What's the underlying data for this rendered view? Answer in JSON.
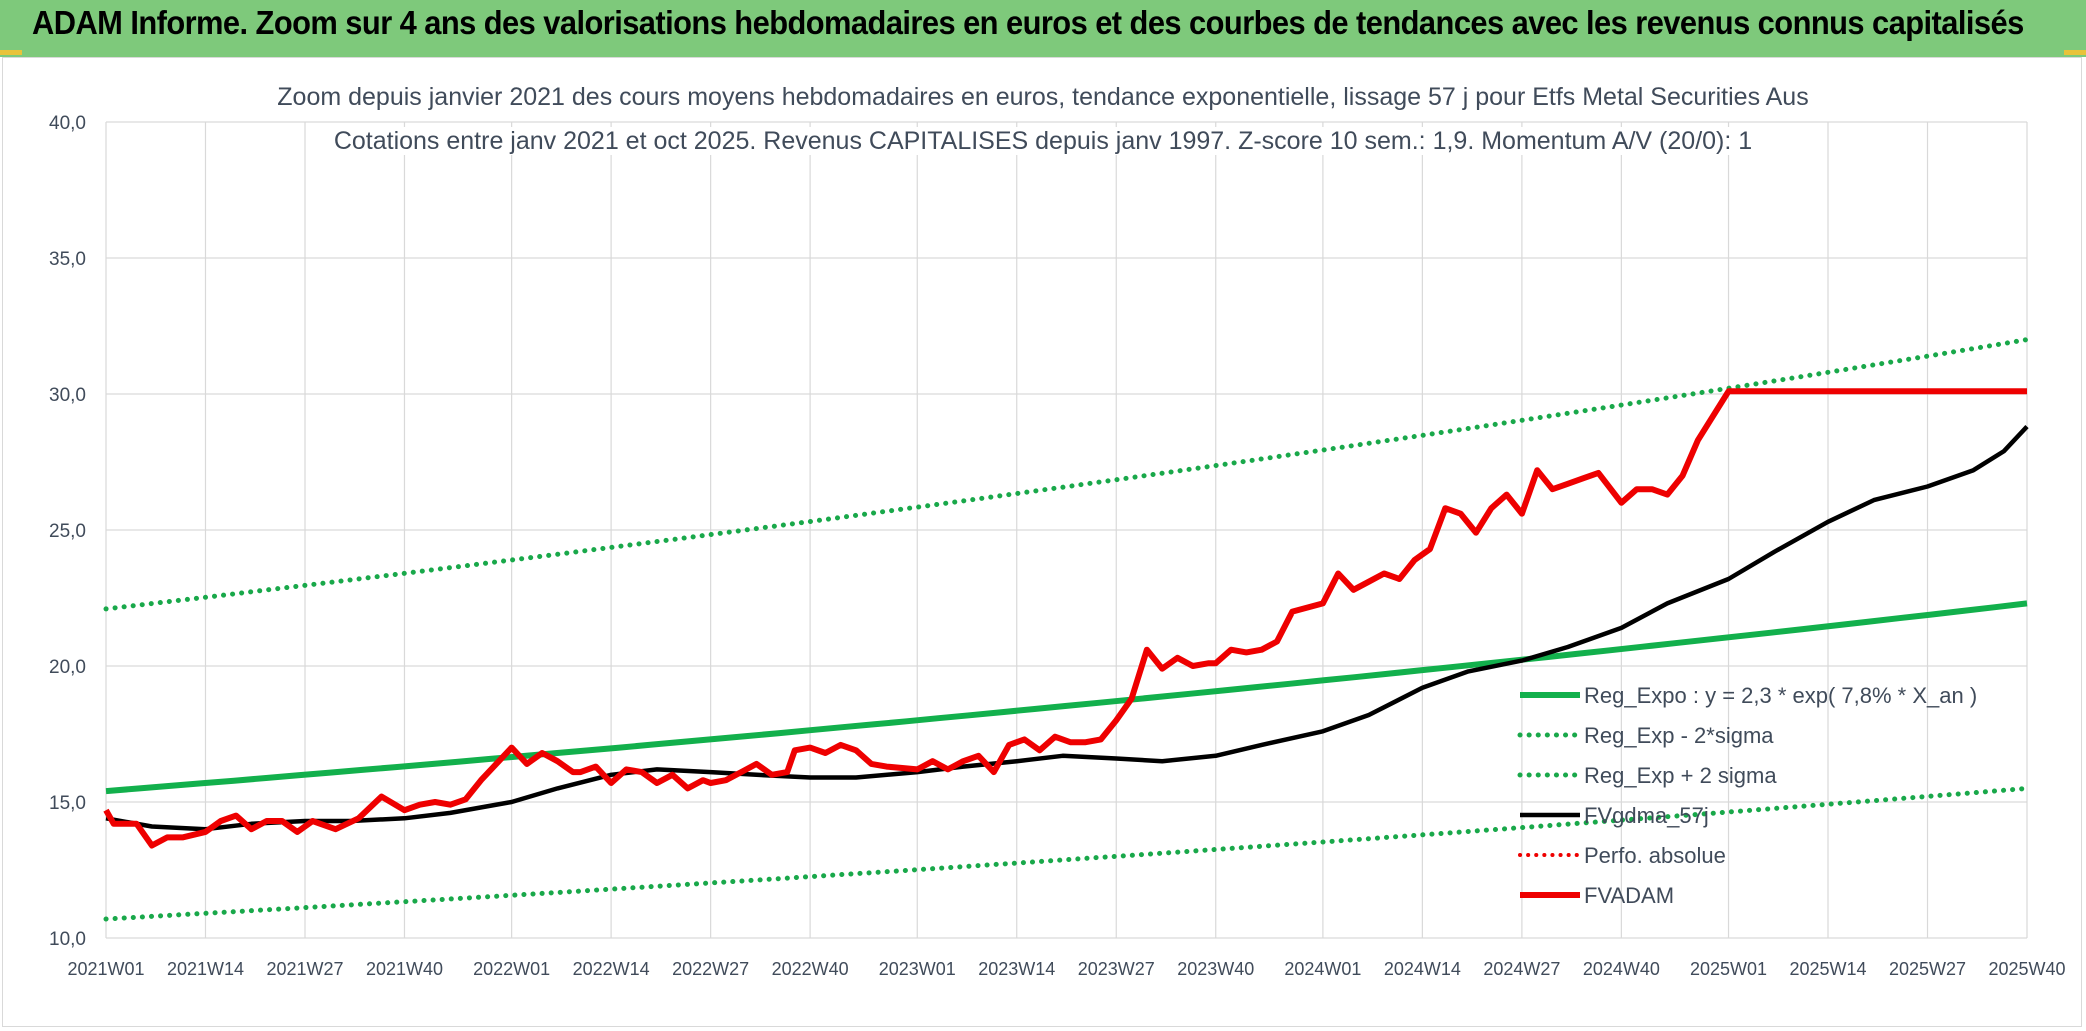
{
  "header": {
    "banner_title": "ADAM Informe. Zoom sur 4 ans des valorisations hebdomadaires en euros et des courbes de tendances avec les revenus connus capitalisés"
  },
  "colors": {
    "banner_bg": "#7ec97b",
    "green_line": "#12b04c",
    "dotted_green": "#19a84a",
    "black_line": "#000000",
    "red_line": "#ee0000"
  },
  "chart_data": {
    "type": "line",
    "title": "Zoom depuis janvier 2021 des cours moyens hebdomadaires en euros, tendance exponentielle, lissage 57 j pour Etfs Metal Securities Aus",
    "subtitle": "Cotations entre janv 2021 et oct 2025. Revenus CAPITALISES depuis janv 1997. Z-score 10 sem.: 1,9. Momentum A/V (20/0): 1",
    "xlabel": "",
    "ylabel": "",
    "ylim": [
      10,
      40
    ],
    "y_ticks": [
      "10,0",
      "15,0",
      "20,0",
      "25,0",
      "30,0",
      "35,0",
      "40,0"
    ],
    "x_tick_labels": [
      "2021W01",
      "2021W14",
      "2021W27",
      "2021W40",
      "2022W01",
      "2022W14",
      "2022W27",
      "2022W40",
      "2023W01",
      "2023W14",
      "2023W27",
      "2023W40",
      "2024W01",
      "2024W14",
      "2024W27",
      "2024W40",
      "2025W01",
      "2025W14",
      "2025W27",
      "2025W40"
    ],
    "grid": true,
    "legend_position": "lower-right",
    "series": [
      {
        "name": "Reg_Expo : y = 2,3 * exp( 7,8% *  X_an )",
        "style": "solid-green",
        "x": [
          "2021W01",
          "2025W40"
        ],
        "values": [
          15.4,
          22.3
        ],
        "curve": "exponential"
      },
      {
        "name": "Reg_Exp - 2*sigma",
        "style": "dotted-green",
        "x": [
          "2021W01",
          "2025W40"
        ],
        "values": [
          10.7,
          15.5
        ],
        "curve": "exponential"
      },
      {
        "name": "Reg_Exp + 2 sigma",
        "style": "dotted-green",
        "x": [
          "2021W01",
          "2025W40"
        ],
        "values": [
          22.1,
          32.0
        ],
        "curve": "exponential"
      },
      {
        "name": "FVgdma_57j",
        "style": "solid-black",
        "x": [
          "2021W01",
          "2021W07",
          "2021W14",
          "2021W20",
          "2021W27",
          "2021W33",
          "2021W40",
          "2021W46",
          "2022W01",
          "2022W07",
          "2022W14",
          "2022W20",
          "2022W27",
          "2022W33",
          "2022W40",
          "2022W46",
          "2023W01",
          "2023W07",
          "2023W14",
          "2023W20",
          "2023W27",
          "2023W33",
          "2023W40",
          "2023W46",
          "2024W01",
          "2024W07",
          "2024W14",
          "2024W20",
          "2024W27",
          "2024W33",
          "2024W40",
          "2024W46",
          "2025W01",
          "2025W07",
          "2025W14",
          "2025W20",
          "2025W27",
          "2025W33",
          "2025W37",
          "2025W40"
        ],
        "values": [
          14.4,
          14.1,
          14.0,
          14.2,
          14.3,
          14.3,
          14.4,
          14.6,
          15.0,
          15.5,
          16.0,
          16.2,
          16.1,
          16.0,
          15.9,
          15.9,
          16.1,
          16.3,
          16.5,
          16.7,
          16.6,
          16.5,
          16.7,
          17.1,
          17.6,
          18.2,
          19.2,
          19.8,
          20.2,
          20.7,
          21.4,
          22.3,
          23.2,
          24.2,
          25.3,
          26.1,
          26.6,
          27.2,
          27.9,
          28.8
        ]
      },
      {
        "name": "Perfo. absolue",
        "style": "dotted-red",
        "x": [],
        "values": []
      },
      {
        "name": "FVADAM",
        "style": "solid-red",
        "x": [
          "2021W01",
          "2021W02",
          "2021W05",
          "2021W07",
          "2021W09",
          "2021W11",
          "2021W14",
          "2021W16",
          "2021W18",
          "2021W20",
          "2021W22",
          "2021W24",
          "2021W26",
          "2021W28",
          "2021W29",
          "2021W31",
          "2021W34",
          "2021W37",
          "2021W40",
          "2021W42",
          "2021W44",
          "2021W46",
          "2021W48",
          "2021W50",
          "2022W01",
          "2022W03",
          "2022W05",
          "2022W07",
          "2022W09",
          "2022W10",
          "2022W12",
          "2022W14",
          "2022W16",
          "2022W18",
          "2022W20",
          "2022W22",
          "2022W24",
          "2022W26",
          "2022W27",
          "2022W29",
          "2022W31",
          "2022W33",
          "2022W35",
          "2022W37",
          "2022W38",
          "2022W40",
          "2022W42",
          "2022W44",
          "2022W46",
          "2022W48",
          "2022W50",
          "2023W01",
          "2023W03",
          "2023W05",
          "2023W07",
          "2023W09",
          "2023W11",
          "2023W13",
          "2023W15",
          "2023W17",
          "2023W19",
          "2023W21",
          "2023W23",
          "2023W25",
          "2023W27",
          "2023W29",
          "2023W31",
          "2023W33",
          "2023W35",
          "2023W37",
          "2023W39",
          "2023W40",
          "2023W42",
          "2023W44",
          "2023W46",
          "2023W48",
          "2023W50",
          "2024W01",
          "2024W03",
          "2024W05",
          "2024W07",
          "2024W09",
          "2024W11",
          "2024W13",
          "2024W15",
          "2024W17",
          "2024W19",
          "2024W21",
          "2024W23",
          "2024W25",
          "2024W27",
          "2024W29",
          "2024W31",
          "2024W33",
          "2024W35",
          "2024W37",
          "2024W40",
          "2024W42",
          "2024W44",
          "2024W46",
          "2024W48",
          "2024W50",
          "2025W01",
          "2025W03",
          "2025W05",
          "2025W07",
          "2025W09",
          "2025W11",
          "2025W13",
          "2025W15",
          "2025W17",
          "2025W19",
          "2025W21",
          "2025W23",
          "2025W25",
          "2025W27",
          "2025W29",
          "2025W31",
          "2025W33",
          "2025W35",
          "2025W37",
          "2025W39",
          "2025W40"
        ],
        "values": [
          14.7,
          14.2,
          14.2,
          13.4,
          13.7,
          13.7,
          13.9,
          14.3,
          14.5,
          14.0,
          14.3,
          14.3,
          13.9,
          14.3,
          14.2,
          14.0,
          14.4,
          15.2,
          14.7,
          14.9,
          15.0,
          14.9,
          15.1,
          15.8,
          17.0,
          16.4,
          16.8,
          16.5,
          16.1,
          16.1,
          16.3,
          15.7,
          16.2,
          16.1,
          15.7,
          16.0,
          15.5,
          15.8,
          15.7,
          15.8,
          16.1,
          16.4,
          16.0,
          16.1,
          16.9,
          17.0,
          16.8,
          17.1,
          16.9,
          16.4,
          16.3,
          16.2,
          16.5,
          16.2,
          16.5,
          16.7,
          16.1,
          17.1,
          17.3,
          16.9,
          17.4,
          17.2,
          17.2,
          17.3,
          18.0,
          18.8,
          20.6,
          19.9,
          20.3,
          20.0,
          20.1,
          20.1,
          20.6,
          20.5,
          20.6,
          20.9,
          22.0,
          22.3,
          23.4,
          22.8,
          23.1,
          23.4,
          23.2,
          23.9,
          24.3,
          25.8,
          25.6,
          24.9,
          25.8,
          26.3,
          25.6,
          27.2,
          26.5,
          26.7,
          26.9,
          27.1,
          26.0,
          26.5,
          26.5,
          26.3,
          27.0,
          28.3,
          30.1,
          30.1,
          30.1,
          30.1,
          30.1,
          30.1,
          30.1,
          30.1,
          30.1,
          30.1,
          30.1,
          30.1,
          30.1,
          30.1,
          30.1,
          30.1,
          30.1,
          30.1,
          30.1,
          30.1,
          30.1
        ]
      }
    ]
  }
}
